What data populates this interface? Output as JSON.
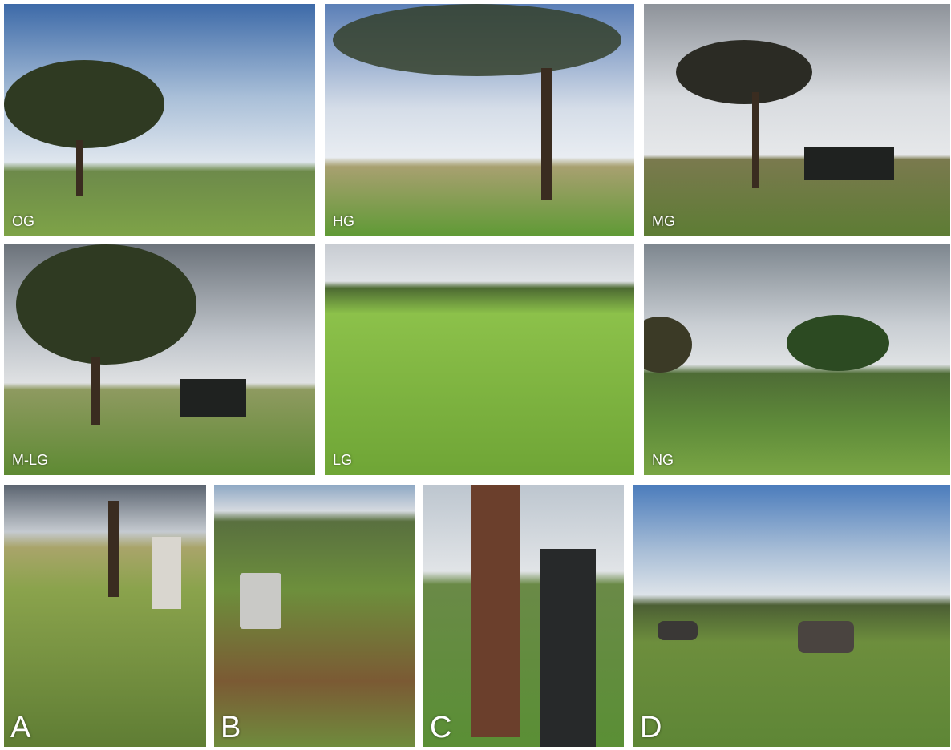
{
  "panels": [
    {
      "label": "OG"
    },
    {
      "label": "HG"
    },
    {
      "label": "MG"
    },
    {
      "label": "M-LG"
    },
    {
      "label": "LG"
    },
    {
      "label": "NG"
    },
    {
      "label": "A"
    },
    {
      "label": "B"
    },
    {
      "label": "C"
    },
    {
      "label": "D"
    }
  ]
}
